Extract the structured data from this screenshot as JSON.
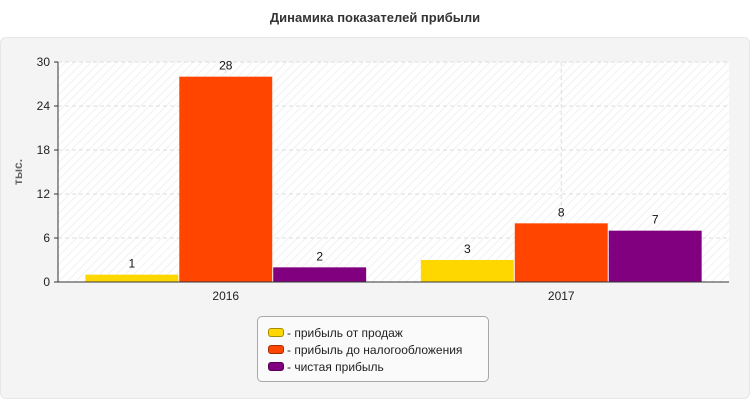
{
  "title": "Динамика показателей прибыли",
  "chart_data": {
    "type": "bar",
    "title": "Динамика показателей прибыли",
    "ylabel": "тыс.",
    "xlabel": "",
    "categories": [
      "2016",
      "2017"
    ],
    "ylim": [
      0,
      30
    ],
    "yticks": [
      0,
      6,
      12,
      18,
      24,
      30
    ],
    "grid": true,
    "legend_position": "bottom",
    "series": [
      {
        "name": "- прибыль от продаж",
        "color": "#FFD700",
        "values": [
          1,
          3
        ],
        "labels": [
          "1",
          "3"
        ]
      },
      {
        "name": "- прибыль до налогообложения",
        "color": "#FF4500",
        "values": [
          28,
          8
        ],
        "labels": [
          "28",
          "8"
        ]
      },
      {
        "name": "- чистая прибыль",
        "color": "#800080",
        "values": [
          2,
          7
        ],
        "labels": [
          "2",
          "7"
        ]
      }
    ]
  }
}
